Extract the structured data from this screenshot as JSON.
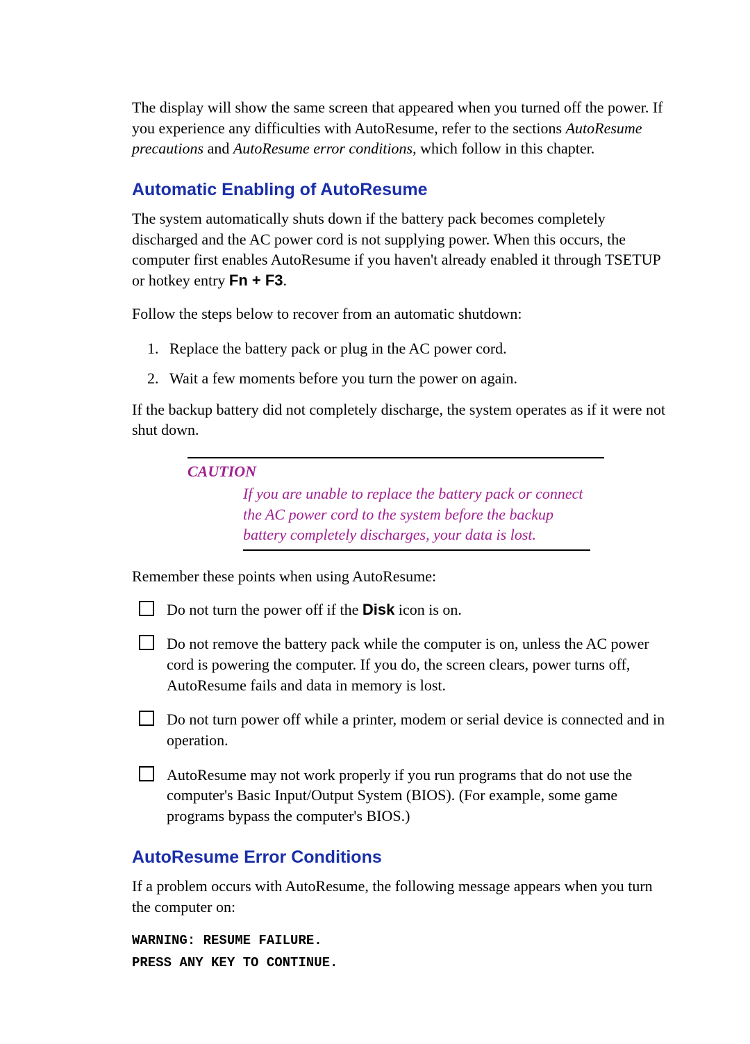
{
  "colors": {
    "heading": "#1a2fa8",
    "caution": "#a02090",
    "text": "#000000",
    "background": "#ffffff"
  },
  "intro": {
    "part1": "The display will show the same screen that appeared when you turned off the power. If you experience any difficulties with AutoResume, refer to the sections ",
    "ref1": "AutoResume precautions",
    "part2": " and ",
    "ref2": "AutoResume error conditions",
    "part3": ", which follow in this chapter."
  },
  "section1": {
    "heading": "Automatic Enabling of AutoResume",
    "p1a": "The system automatically shuts down if the battery pack becomes completely discharged and the AC power cord is not supplying power. When this occurs, the computer first enables AutoResume if you haven't already enabled it through TSETUP or hotkey entry ",
    "hotkey": "Fn + F3",
    "p1b": ".",
    "p2": "Follow the steps below to recover from an automatic shutdown:",
    "steps": [
      "Replace the battery pack or plug in the AC power cord.",
      "Wait a few moments before you turn the power on again."
    ],
    "p3": "If the backup battery did not completely discharge, the system operates as if it were not shut down."
  },
  "caution": {
    "label": "CAUTION",
    "body": "If you are unable to replace the battery pack or connect the AC power cord to the system before the backup battery completely discharges, your data is lost."
  },
  "remember": {
    "lead": "Remember these points when using AutoResume:",
    "items": [
      {
        "pre": "Do not turn the power off if the ",
        "bold": "Disk",
        "post": " icon is on."
      },
      {
        "text": "Do not remove the battery pack while the computer is on, unless the AC power cord is powering the computer. If you do, the screen clears, power turns off, AutoResume fails and data in memory is lost."
      },
      {
        "text": "Do not turn power off while a printer, modem or serial device is connected and in operation."
      },
      {
        "text": "AutoResume may not work properly if you run programs that do not use the computer's Basic Input/Output System (BIOS). (For example, some game programs bypass the computer's BIOS.)"
      }
    ]
  },
  "section2": {
    "heading": "AutoResume Error Conditions",
    "p1": "If a problem occurs with AutoResume, the following message appears when you turn the computer on:",
    "code": "WARNING: RESUME FAILURE.\nPRESS ANY KEY TO CONTINUE."
  }
}
